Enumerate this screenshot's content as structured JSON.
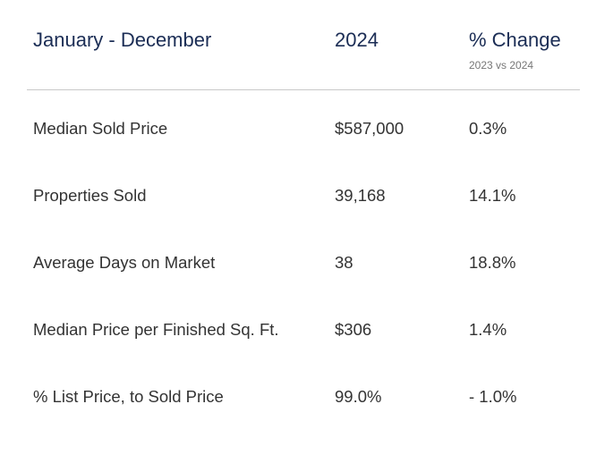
{
  "header": {
    "columns": [
      "January - December",
      "2024",
      "% Change"
    ],
    "subtitle": "2023 vs 2024"
  },
  "table": {
    "rows": [
      [
        "Median Sold Price",
        "$587,000",
        "0.3%"
      ],
      [
        "Properties Sold",
        "39,168",
        "14.1%"
      ],
      [
        "Average Days on Market",
        "38",
        "18.8%"
      ],
      [
        "Median Price per Finished Sq. Ft.",
        "$306",
        "1.4%"
      ],
      [
        "% List Price, to Sold Price",
        "99.0%",
        "- 1.0%"
      ]
    ]
  }
}
